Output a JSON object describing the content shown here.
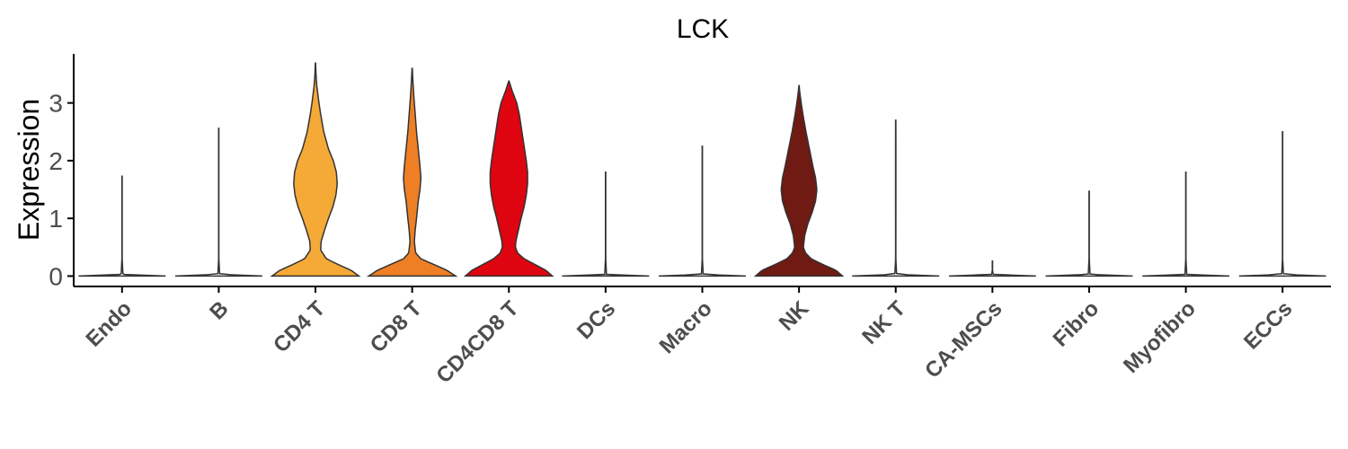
{
  "chart_data": {
    "type": "violin",
    "title": "LCK",
    "ylabel": "Expression",
    "xlabel": "",
    "ylim": [
      -0.18,
      3.85
    ],
    "yticks": [
      0,
      1,
      2,
      3
    ],
    "grid": false,
    "legend": "none",
    "categories": [
      "Endo",
      "B",
      "CD4 T",
      "CD8 T",
      "CD4CD8 T",
      "DCs",
      "Macro",
      "NK",
      "NK T",
      "CA-MSCs",
      "Fibro",
      "Myofibro",
      "ECCs"
    ],
    "colors": [
      "#ffffff",
      "#ffffff",
      "#f5a936",
      "#ee7f25",
      "#de0510",
      "#ffffff",
      "#ffffff",
      "#6f1a12",
      "#ffffff",
      "#ffffff",
      "#ffffff",
      "#ffffff",
      "#ffffff"
    ],
    "max_values": [
      1.73,
      2.56,
      3.69,
      3.6,
      3.38,
      1.8,
      2.25,
      3.3,
      2.7,
      0.26,
      1.47,
      1.8,
      2.5
    ],
    "density_profiles": [
      [
        [
          0,
          1
        ],
        [
          0.03,
          0.02
        ],
        [
          0.3,
          0.003
        ],
        [
          1.73,
          0.003
        ]
      ],
      [
        [
          0,
          1
        ],
        [
          0.03,
          0.02
        ],
        [
          0.3,
          0.003
        ],
        [
          2.56,
          0.003
        ]
      ],
      [
        [
          0,
          1
        ],
        [
          0.1,
          0.82
        ],
        [
          0.2,
          0.52
        ],
        [
          0.3,
          0.25
        ],
        [
          0.45,
          0.12
        ],
        [
          0.6,
          0.13
        ],
        [
          0.8,
          0.21
        ],
        [
          1.0,
          0.3
        ],
        [
          1.2,
          0.4
        ],
        [
          1.4,
          0.47
        ],
        [
          1.6,
          0.5
        ],
        [
          1.8,
          0.48
        ],
        [
          2.0,
          0.41
        ],
        [
          2.2,
          0.3
        ],
        [
          2.5,
          0.19
        ],
        [
          2.8,
          0.12
        ],
        [
          3.0,
          0.08
        ],
        [
          3.3,
          0.03
        ],
        [
          3.5,
          0.012
        ],
        [
          3.69,
          0.003
        ]
      ],
      [
        [
          0,
          1
        ],
        [
          0.1,
          0.8
        ],
        [
          0.2,
          0.5
        ],
        [
          0.3,
          0.2
        ],
        [
          0.4,
          0.08
        ],
        [
          0.6,
          0.05
        ],
        [
          0.8,
          0.07
        ],
        [
          1.0,
          0.1
        ],
        [
          1.3,
          0.14
        ],
        [
          1.5,
          0.18
        ],
        [
          1.7,
          0.2
        ],
        [
          1.9,
          0.18
        ],
        [
          2.2,
          0.14
        ],
        [
          2.5,
          0.1
        ],
        [
          2.8,
          0.07
        ],
        [
          3.1,
          0.04
        ],
        [
          3.4,
          0.015
        ],
        [
          3.6,
          0.003
        ]
      ],
      [
        [
          0,
          1
        ],
        [
          0.1,
          0.85
        ],
        [
          0.2,
          0.6
        ],
        [
          0.3,
          0.35
        ],
        [
          0.4,
          0.2
        ],
        [
          0.5,
          0.15
        ],
        [
          0.6,
          0.16
        ],
        [
          0.8,
          0.22
        ],
        [
          1.0,
          0.28
        ],
        [
          1.2,
          0.35
        ],
        [
          1.4,
          0.4
        ],
        [
          1.6,
          0.43
        ],
        [
          1.8,
          0.43
        ],
        [
          2.0,
          0.4
        ],
        [
          2.2,
          0.36
        ],
        [
          2.5,
          0.3
        ],
        [
          2.8,
          0.24
        ],
        [
          3.0,
          0.18
        ],
        [
          3.2,
          0.08
        ],
        [
          3.38,
          0.003
        ]
      ],
      [
        [
          0,
          1
        ],
        [
          0.03,
          0.02
        ],
        [
          0.3,
          0.003
        ],
        [
          1.8,
          0.003
        ]
      ],
      [
        [
          0,
          1
        ],
        [
          0.03,
          0.02
        ],
        [
          0.3,
          0.003
        ],
        [
          2.25,
          0.003
        ]
      ],
      [
        [
          0,
          1
        ],
        [
          0.1,
          0.85
        ],
        [
          0.2,
          0.55
        ],
        [
          0.3,
          0.28
        ],
        [
          0.4,
          0.15
        ],
        [
          0.5,
          0.1
        ],
        [
          0.7,
          0.13
        ],
        [
          0.9,
          0.2
        ],
        [
          1.1,
          0.3
        ],
        [
          1.3,
          0.38
        ],
        [
          1.5,
          0.41
        ],
        [
          1.7,
          0.38
        ],
        [
          1.9,
          0.32
        ],
        [
          2.2,
          0.24
        ],
        [
          2.5,
          0.16
        ],
        [
          2.8,
          0.09
        ],
        [
          3.0,
          0.05
        ],
        [
          3.2,
          0.015
        ],
        [
          3.3,
          0.003
        ]
      ],
      [
        [
          0,
          1
        ],
        [
          0.03,
          0.02
        ],
        [
          0.3,
          0.003
        ],
        [
          1.5,
          0.004
        ],
        [
          2.2,
          0.004
        ],
        [
          2.7,
          0.003
        ]
      ],
      [
        [
          0,
          1
        ],
        [
          0.03,
          0.02
        ],
        [
          0.1,
          0.003
        ],
        [
          0.26,
          0.003
        ]
      ],
      [
        [
          0,
          1
        ],
        [
          0.03,
          0.02
        ],
        [
          0.3,
          0.003
        ],
        [
          1.47,
          0.003
        ]
      ],
      [
        [
          0,
          1
        ],
        [
          0.03,
          0.02
        ],
        [
          0.3,
          0.003
        ],
        [
          1.8,
          0.003
        ]
      ],
      [
        [
          0,
          1
        ],
        [
          0.03,
          0.02
        ],
        [
          0.3,
          0.003
        ],
        [
          2.5,
          0.003
        ]
      ]
    ]
  }
}
